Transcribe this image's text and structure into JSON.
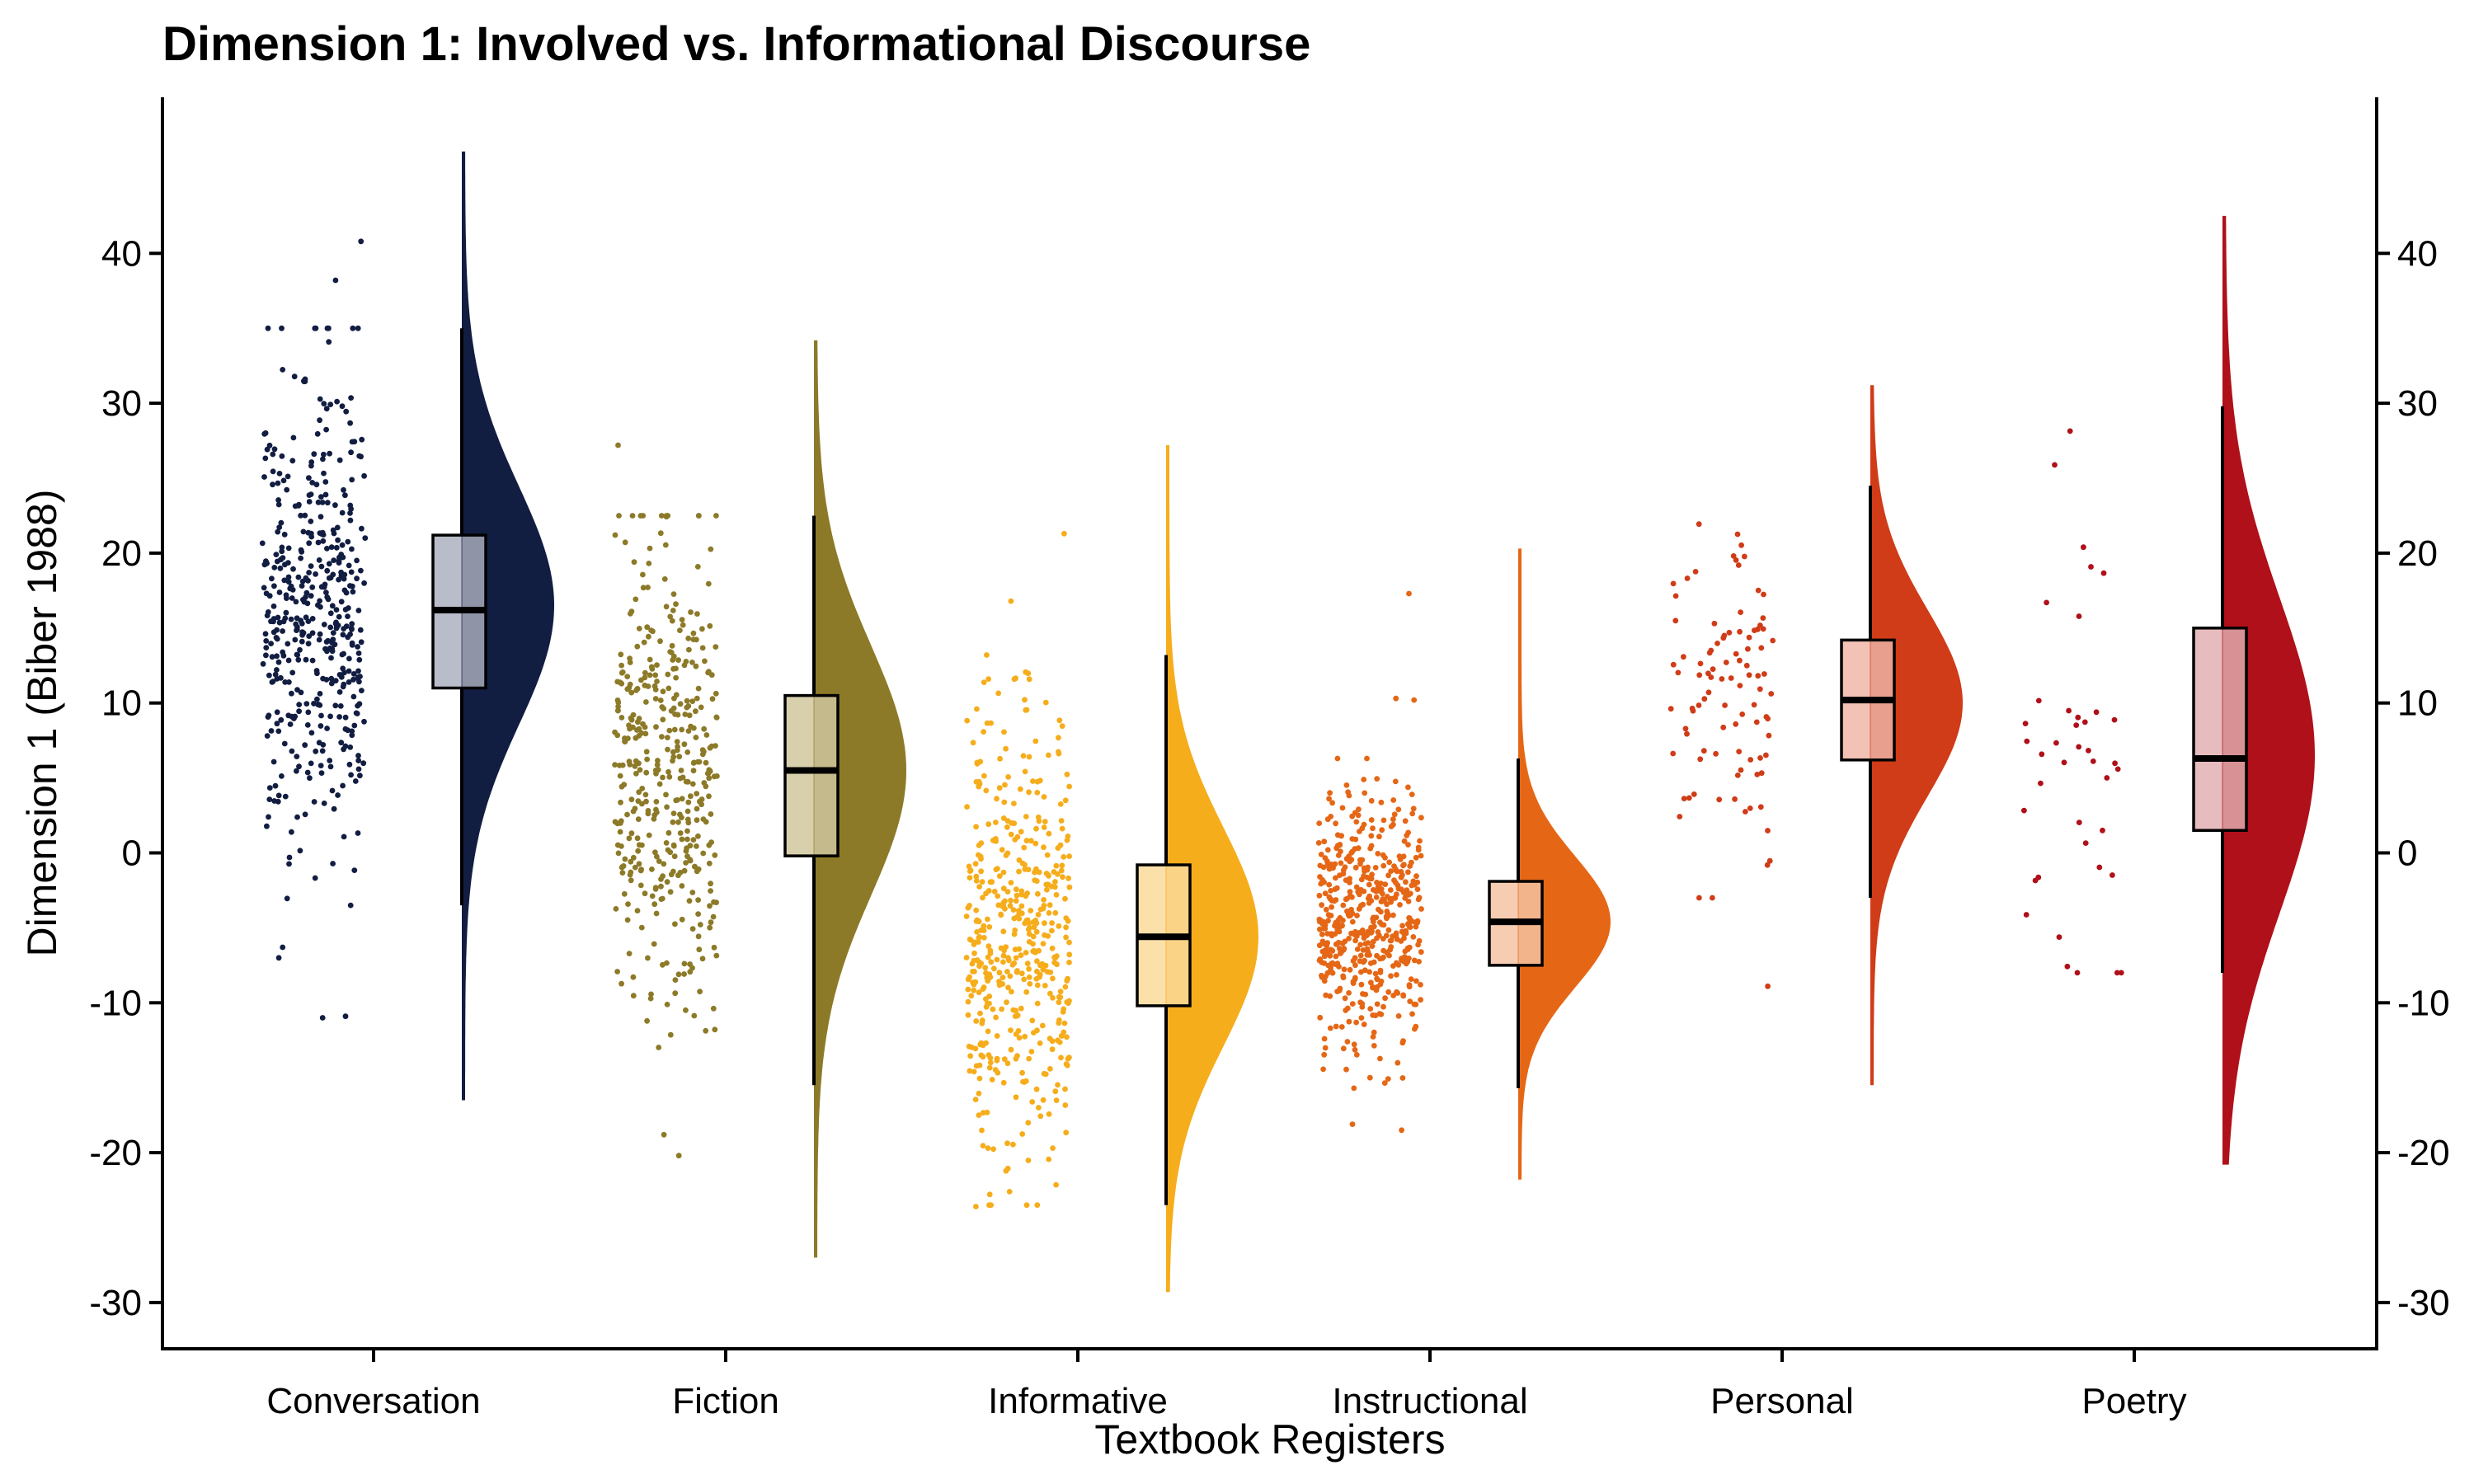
{
  "chart_data": {
    "type": "raincloud",
    "title": "Dimension 1: Involved vs. Informational Discourse",
    "xlabel": "Textbook Registers",
    "ylabel": "Dimension 1 (Biber 1988)",
    "ylim": [
      -33.5,
      50.5
    ],
    "yticks": [
      -30,
      -20,
      -10,
      0,
      10,
      20,
      30,
      40
    ],
    "ytick_labels": [
      "-30",
      "-20",
      "-10",
      "0",
      "10",
      "20",
      "30",
      "40"
    ],
    "secondary_y_axis": true,
    "legend": "none",
    "grid": false,
    "categories": [
      "Conversation",
      "Fiction",
      "Informative",
      "Instructional",
      "Personal",
      "Poetry"
    ],
    "series": [
      {
        "category": "Conversation",
        "color": "#121d42",
        "box_fill": "#b9bcc9",
        "n_points": 450,
        "q1": 11.0,
        "median": 16.2,
        "q3": 21.2,
        "whisker_low": -3.5,
        "whisker_high": 35.0,
        "violin_min": -16.5,
        "violin_max": 46.8,
        "density_mode": 16.5,
        "outliers": [
          40.8,
          38.2,
          -6.3,
          -7.0,
          -10.9,
          -11.0
        ]
      },
      {
        "category": "Fiction",
        "color": "#8c7a28",
        "box_fill": "#d8d0ac",
        "n_points": 420,
        "q1": -0.2,
        "median": 5.5,
        "q3": 10.5,
        "whisker_low": -15.5,
        "whisker_high": 22.5,
        "violin_min": -27.0,
        "violin_max": 34.2,
        "density_mode": 5.5,
        "outliers": [
          27.2,
          -18.8,
          -20.2
        ]
      },
      {
        "category": "Informative",
        "color": "#f6ad1c",
        "box_fill": "#fbe0aa",
        "n_points": 480,
        "q1": -10.2,
        "median": -5.6,
        "q3": -0.8,
        "whisker_low": -23.5,
        "whisker_high": 13.2,
        "violin_min": -29.3,
        "violin_max": 27.2,
        "density_mode": -5.6,
        "outliers": [
          21.3,
          16.8,
          -23.6
        ]
      },
      {
        "category": "Instructional",
        "color": "#e56716",
        "box_fill": "#f6cdb3",
        "n_points": 520,
        "q1": -7.5,
        "median": -4.6,
        "q3": -1.9,
        "whisker_low": -15.7,
        "whisker_high": 6.3,
        "violin_min": -21.8,
        "violin_max": 20.3,
        "density_mode": -4.6,
        "outliers": [
          17.3,
          10.2,
          10.3,
          -18.1,
          -18.5
        ]
      },
      {
        "category": "Personal",
        "color": "#d03b18",
        "box_fill": "#f2c2b6",
        "n_points": 95,
        "q1": 6.2,
        "median": 10.2,
        "q3": 14.2,
        "whisker_low": -3.0,
        "whisker_high": 24.5,
        "violin_min": -15.5,
        "violin_max": 31.2,
        "density_mode": 10.0,
        "outliers": [
          -8.9
        ]
      },
      {
        "category": "Poetry",
        "color": "#b01019",
        "box_fill": "#e6bcbf",
        "n_points": 40,
        "q1": 1.5,
        "median": 6.3,
        "q3": 15.0,
        "whisker_low": -8.0,
        "whisker_high": 29.8,
        "violin_min": -20.8,
        "violin_max": 42.5,
        "density_mode": 6.5,
        "outliers": []
      }
    ]
  }
}
